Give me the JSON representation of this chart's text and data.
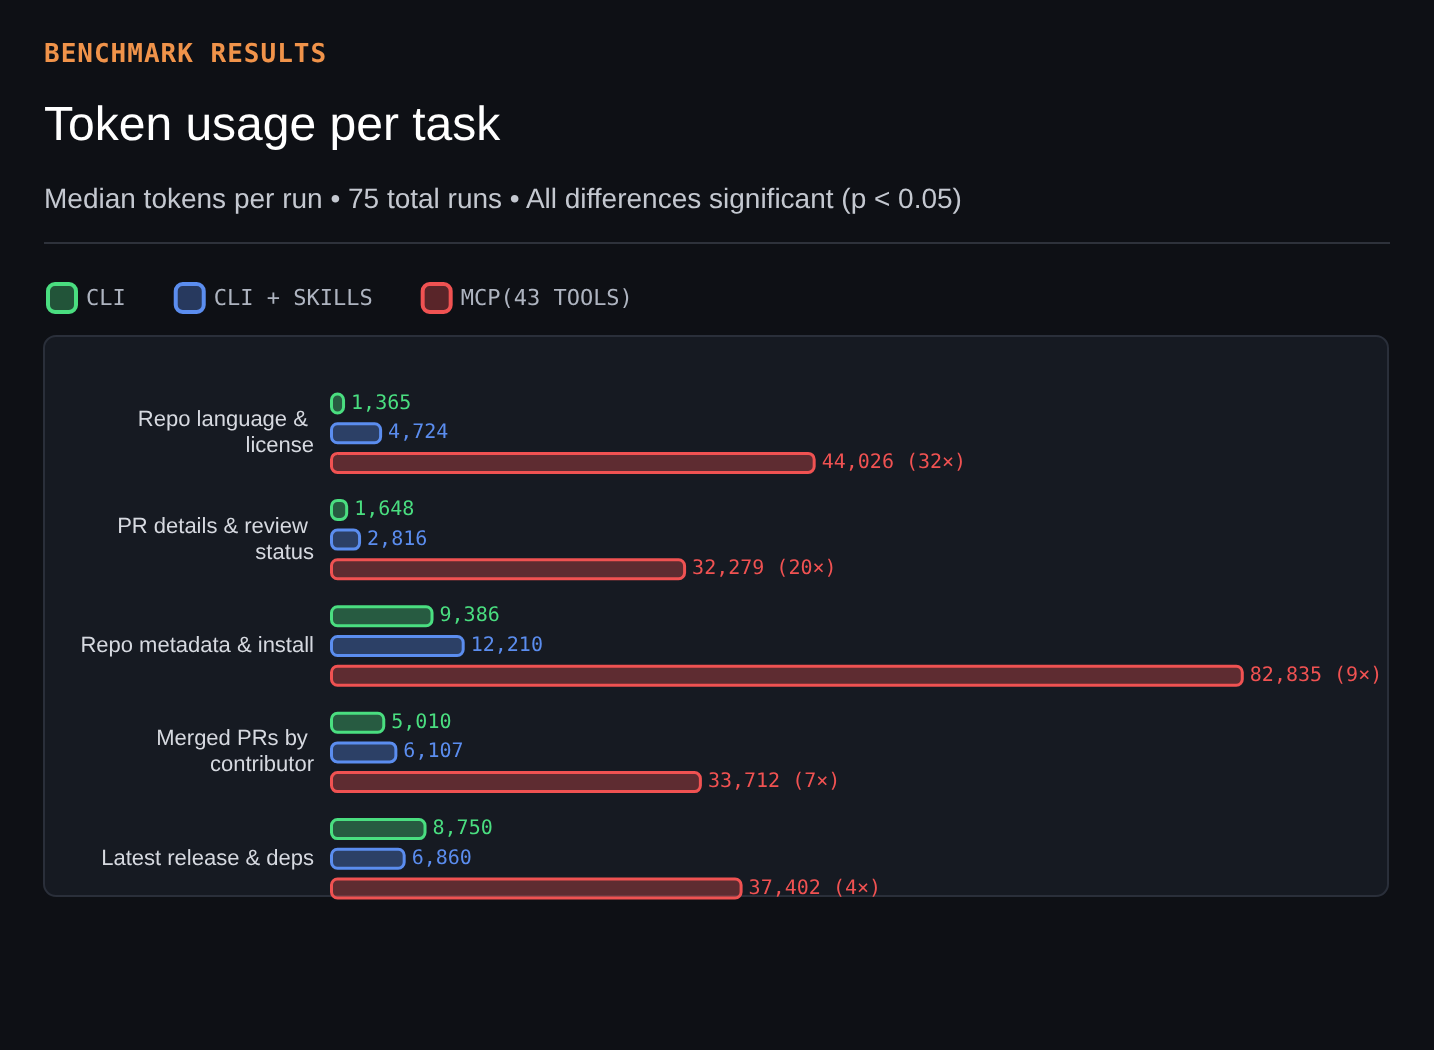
{
  "chart_data": {
    "type": "bar",
    "orientation": "horizontal",
    "annotations": [
      "BENCHMARK RESULTS"
    ],
    "title": "Token usage per task",
    "subtitle": "Median tokens per run • 75 total runs • All differences significant (p < 0.05)",
    "legend": "top left",
    "categories": [
      "Repo language & license",
      "PR details & review status",
      "Repo metadata & install",
      "Merged PRs by contributor",
      "Latest release & deps"
    ],
    "series": [
      {
        "name": "CLI",
        "color": "#4ade80",
        "values": [
          1365,
          1648,
          9386,
          5010,
          8750
        ],
        "value_labels": [
          "1,365",
          "1,648",
          "9,386",
          "5,010",
          "8,750"
        ]
      },
      {
        "name": "CLI + SKILLS",
        "color": "#5b8def",
        "values": [
          4724,
          2816,
          12210,
          6107,
          6860
        ],
        "value_labels": [
          "4,724",
          "2,816",
          "12,210",
          "6,107",
          "6,860"
        ]
      },
      {
        "name": "MCP(43 TOOLS)",
        "color": "#f05252",
        "values": [
          44026,
          32279,
          82835,
          33712,
          37402
        ],
        "value_labels": [
          "44,026 (32×)",
          "32,279 (20×)",
          "82,835 (9×)",
          "33,712 (7×)",
          "37,402 (4×)"
        ]
      }
    ]
  }
}
